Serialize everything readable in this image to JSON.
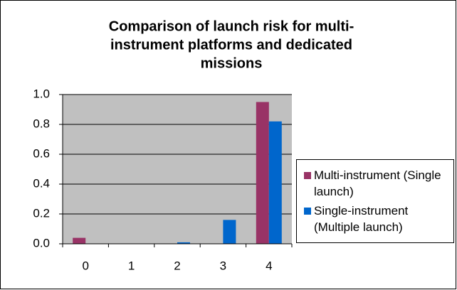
{
  "chart_data": {
    "type": "bar",
    "title": [
      "Comparison of launch risk for multi-",
      "instrument platforms and dedicated",
      "missions"
    ],
    "categories": [
      "0",
      "1",
      "2",
      "3",
      "4"
    ],
    "series": [
      {
        "name": "Multi-instrument (Single launch)",
        "color": "#993366",
        "values": [
          0.04,
          0,
          0,
          0,
          0.95
        ]
      },
      {
        "name": "Single-instrument (Multiple launch)",
        "color": "#0066cc",
        "values": [
          0,
          0,
          0.01,
          0.16,
          0.82
        ]
      }
    ],
    "ylim": [
      0,
      1
    ],
    "yticks": [
      {
        "value": 0,
        "label": "0.0"
      },
      0.2,
      0.4,
      0.6,
      0.8,
      {
        "value": 1,
        "label": "1.0"
      }
    ],
    "grid": true,
    "legend": "right"
  }
}
